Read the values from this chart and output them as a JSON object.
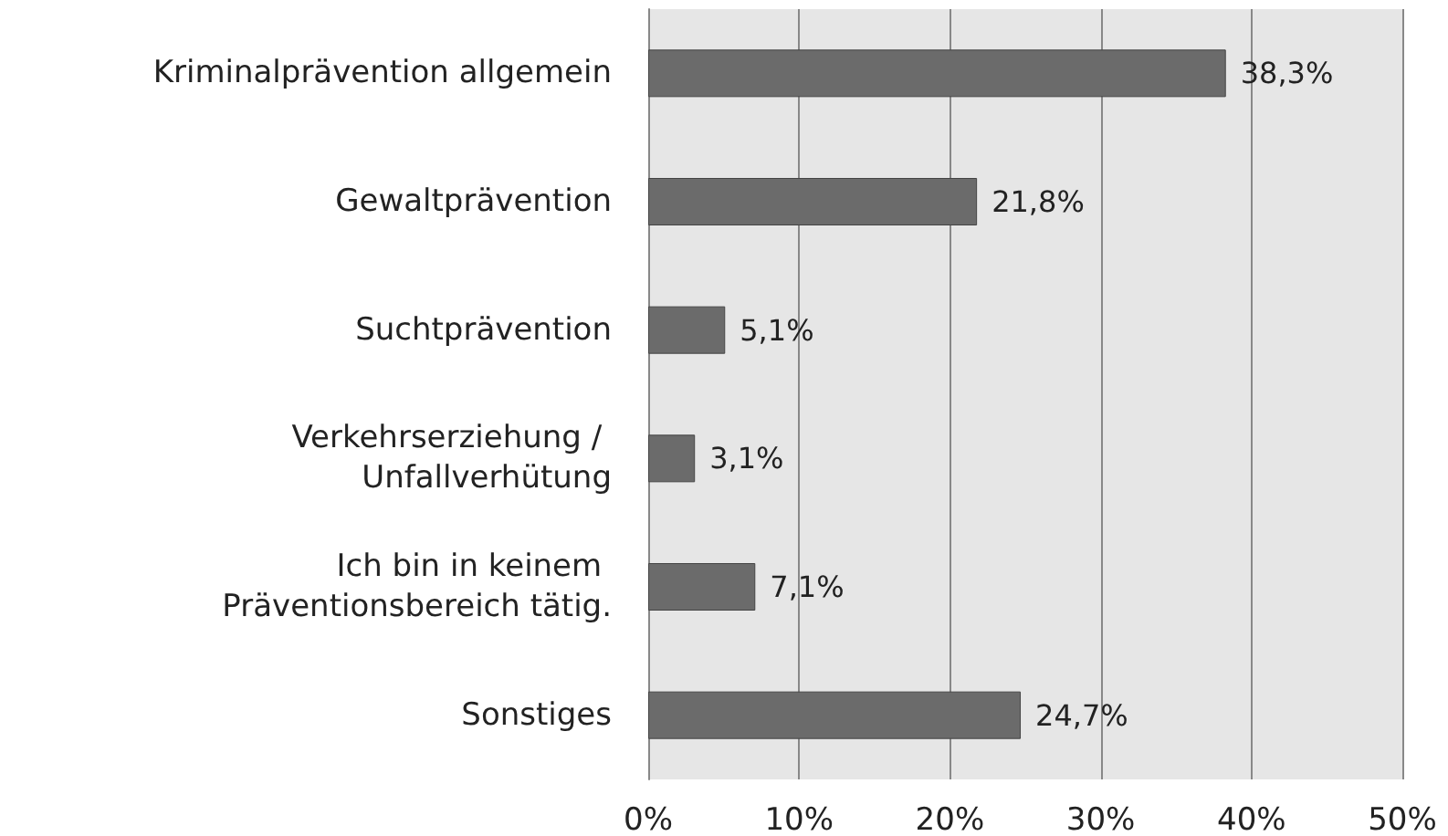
{
  "chart_data": {
    "type": "bar",
    "orientation": "horizontal",
    "categories": [
      "Kriminalprävention allgemein",
      "Gewaltprävention",
      "Suchtprävention",
      "Verkehrserziehung / Unfallverhütung",
      "Ich bin in keinem Präventionsbereich tätig.",
      "Sonstiges"
    ],
    "values": [
      38.3,
      21.8,
      5.1,
      3.1,
      7.1,
      24.7
    ],
    "value_labels": [
      "38,3%",
      "21,8%",
      "5,1%",
      "3,1%",
      "7,1%",
      "24,7%"
    ],
    "color": "#6b6b6b",
    "xlim": [
      0,
      50
    ],
    "xticks": [
      {
        "value": 0,
        "label": "0%"
      },
      {
        "value": 10,
        "label": "10%"
      },
      {
        "value": 20,
        "label": "20%"
      },
      {
        "value": 30,
        "label": "30%"
      },
      {
        "value": 40,
        "label": "40%"
      },
      {
        "value": 50,
        "label": "50%"
      }
    ],
    "grid": "x"
  }
}
